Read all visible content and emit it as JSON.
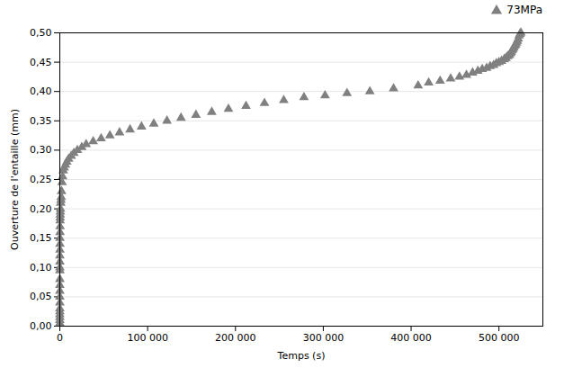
{
  "chart_data": {
    "type": "scatter",
    "xlabel": "Temps (s)",
    "ylabel": "Ouverture de l'entaille (mm)",
    "x": [
      1,
      2,
      3,
      5,
      7,
      10,
      13,
      16,
      20,
      25,
      30,
      40,
      50,
      65,
      80,
      100,
      120,
      150,
      200,
      260,
      330,
      420,
      520,
      640,
      800,
      1000,
      1300,
      1600,
      2000,
      2600,
      3200,
      4000,
      5000,
      6500,
      8000,
      10000,
      13000,
      16000,
      20000,
      25000,
      30000,
      38000,
      47000,
      57000,
      68000,
      80000,
      93000,
      107000,
      122000,
      138000,
      155000,
      173000,
      192000,
      212000,
      233000,
      255000,
      278000,
      302000,
      327000,
      353000,
      380000,
      408000,
      420000,
      433000,
      445000,
      455000,
      463000,
      470000,
      476000,
      481000,
      486000,
      490000,
      494000,
      497000,
      500000,
      503000,
      506000,
      508000,
      510000,
      512000,
      513000,
      514000,
      515000,
      516000,
      517000,
      518000,
      519000,
      520000,
      521000,
      522000,
      523000,
      524000,
      525000
    ],
    "series": [
      {
        "name": "73MPa",
        "color": "#808080",
        "marker": "triangle",
        "values": [
          0.005,
          0.01,
          0.015,
          0.02,
          0.025,
          0.03,
          0.04,
          0.05,
          0.06,
          0.07,
          0.08,
          0.095,
          0.1,
          0.11,
          0.12,
          0.13,
          0.14,
          0.15,
          0.16,
          0.17,
          0.18,
          0.185,
          0.19,
          0.195,
          0.2,
          0.21,
          0.215,
          0.22,
          0.23,
          0.245,
          0.255,
          0.265,
          0.27,
          0.275,
          0.28,
          0.285,
          0.29,
          0.295,
          0.3,
          0.305,
          0.31,
          0.315,
          0.32,
          0.325,
          0.33,
          0.335,
          0.34,
          0.345,
          0.35,
          0.355,
          0.36,
          0.365,
          0.37,
          0.375,
          0.38,
          0.385,
          0.39,
          0.393,
          0.397,
          0.4,
          0.405,
          0.41,
          0.415,
          0.418,
          0.422,
          0.425,
          0.428,
          0.432,
          0.435,
          0.438,
          0.44,
          0.443,
          0.445,
          0.448,
          0.45,
          0.452,
          0.455,
          0.457,
          0.46,
          0.462,
          0.465,
          0.467,
          0.47,
          0.472,
          0.475,
          0.478,
          0.48,
          0.483,
          0.486,
          0.49,
          0.495,
          0.498,
          0.5
        ]
      }
    ],
    "xlim": [
      0,
      550000
    ],
    "ylim": [
      0.0,
      0.5
    ],
    "xticks": [
      0,
      {
        "value": 100000,
        "label": "100 000"
      },
      {
        "value": 200000,
        "label": "200 000"
      },
      {
        "value": 300000,
        "label": "300 000"
      },
      {
        "value": 400000,
        "label": "400 000"
      },
      {
        "value": 500000,
        "label": "500 000"
      }
    ],
    "yticks": [
      {
        "value": 0.0,
        "label": "0,00"
      },
      {
        "value": 0.05,
        "label": "0,05"
      },
      {
        "value": 0.1,
        "label": "0,10"
      },
      {
        "value": 0.15,
        "label": "0,15"
      },
      {
        "value": 0.2,
        "label": "0,20"
      },
      {
        "value": 0.25,
        "label": "0,25"
      },
      {
        "value": 0.3,
        "label": "0,30"
      },
      {
        "value": 0.35,
        "label": "0,35"
      },
      {
        "value": 0.4,
        "label": "0,40"
      },
      {
        "value": 0.45,
        "label": "0,45"
      },
      {
        "value": 0.5,
        "label": "0,50"
      }
    ],
    "grid": true,
    "legend": "right"
  }
}
